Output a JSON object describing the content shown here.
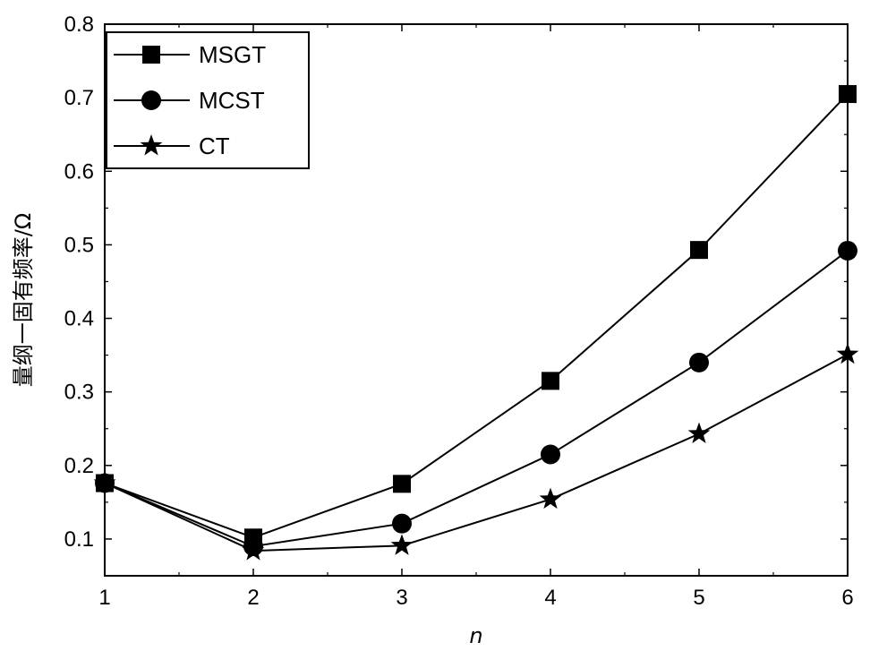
{
  "chart_data": {
    "type": "line",
    "title": "",
    "xlabel": "n",
    "ylabel": "量纲一固有频率/Ω",
    "x": [
      1,
      2,
      3,
      4,
      5,
      6
    ],
    "xlim": [
      1,
      6
    ],
    "ylim": [
      0.05,
      0.8
    ],
    "xticks": [
      "1",
      "2",
      "3",
      "4",
      "5",
      "6"
    ],
    "yticks": [
      "0.1",
      "0.2",
      "0.3",
      "0.4",
      "0.5",
      "0.6",
      "0.7",
      "0.8"
    ],
    "grid": false,
    "legend_position": "top-left",
    "series": [
      {
        "name": "MSGT",
        "marker": "square",
        "color": "#000000",
        "values": [
          0.176,
          0.102,
          0.175,
          0.315,
          0.493,
          0.705
        ]
      },
      {
        "name": "MCST",
        "marker": "circle",
        "color": "#000000",
        "values": [
          0.176,
          0.09,
          0.121,
          0.215,
          0.34,
          0.492
        ]
      },
      {
        "name": "CT",
        "marker": "star",
        "color": "#000000",
        "values": [
          0.176,
          0.084,
          0.091,
          0.154,
          0.243,
          0.351
        ]
      }
    ]
  }
}
